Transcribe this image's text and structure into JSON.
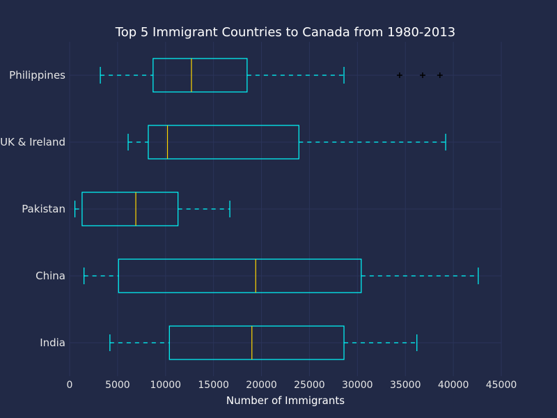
{
  "colors": {
    "background": "#212946",
    "grid": "#2A3459",
    "box": "#00FFFF",
    "median": "#FFD700",
    "flier": "#000000",
    "text": "#FFFFFF",
    "tick_text": "#E6E6E6"
  },
  "chart_data": {
    "type": "boxplot",
    "orientation": "horizontal",
    "title": "Top 5 Immigrant Countries to Canada from 1980-2013",
    "xlabel": "Number of Immigrants",
    "ylabel": "",
    "xlim": [
      0,
      45000
    ],
    "xticks": [
      0,
      5000,
      10000,
      15000,
      20000,
      25000,
      30000,
      35000,
      40000,
      45000
    ],
    "grid": true,
    "categories": [
      "India",
      "China",
      "Pakistan",
      "UK & Ireland",
      "Philippines"
    ],
    "boxes": [
      {
        "name": "India",
        "whisker_low": 4200,
        "q1": 10400,
        "median": 19000,
        "q3": 28600,
        "whisker_high": 36200,
        "fliers": []
      },
      {
        "name": "China",
        "whisker_low": 1500,
        "q1": 5100,
        "median": 19400,
        "q3": 30400,
        "whisker_high": 42600,
        "fliers": []
      },
      {
        "name": "Pakistan",
        "whisker_low": 550,
        "q1": 1300,
        "median": 6900,
        "q3": 11300,
        "whisker_high": 16700,
        "fliers": []
      },
      {
        "name": "UK & Ireland",
        "whisker_low": 6100,
        "q1": 8200,
        "median": 10200,
        "q3": 23900,
        "whisker_high": 39200,
        "fliers": []
      },
      {
        "name": "Philippines",
        "whisker_low": 3200,
        "q1": 8700,
        "median": 12700,
        "q3": 18500,
        "whisker_high": 28600,
        "fliers": [
          34400,
          36800,
          38600
        ]
      }
    ]
  }
}
